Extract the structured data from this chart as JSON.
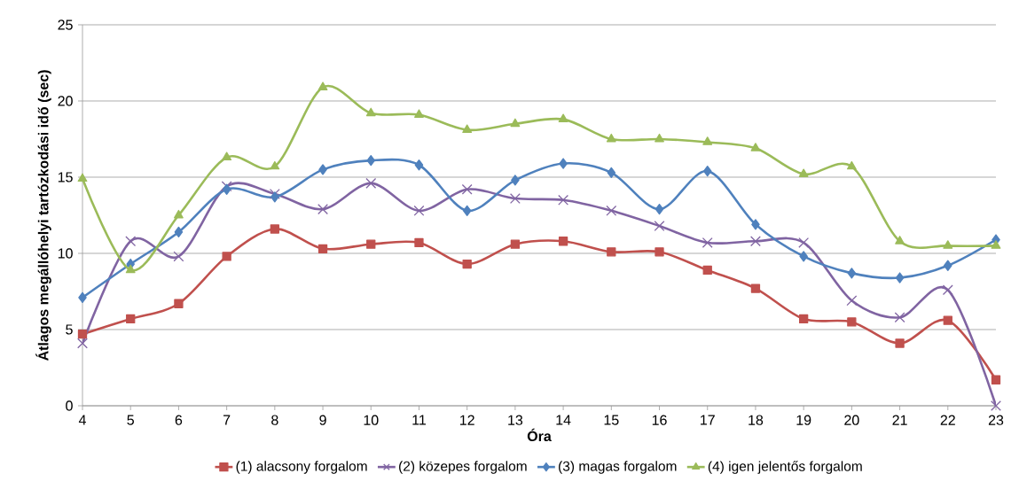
{
  "chart_data": {
    "type": "line",
    "xlabel": "Óra",
    "ylabel": "Átlagos megállóhelyi tartózkodási idő (sec)",
    "x": [
      4,
      5,
      6,
      7,
      8,
      9,
      10,
      11,
      12,
      13,
      14,
      15,
      16,
      17,
      18,
      19,
      20,
      21,
      22,
      23
    ],
    "xlim": [
      4,
      23
    ],
    "xticks": [
      4,
      5,
      6,
      7,
      8,
      9,
      10,
      11,
      12,
      13,
      14,
      15,
      16,
      17,
      18,
      19,
      20,
      21,
      22,
      23
    ],
    "ylim": [
      0,
      25
    ],
    "yticks": [
      0,
      5,
      10,
      15,
      20,
      25
    ],
    "grid": "y",
    "legend": "bottom",
    "series": [
      {
        "name": "(1) alacsony forgalom",
        "color": "#c0504d",
        "marker": "square",
        "values": [
          4.7,
          5.7,
          6.7,
          9.8,
          11.6,
          10.3,
          10.6,
          10.7,
          9.3,
          10.6,
          10.8,
          10.1,
          10.1,
          8.9,
          7.7,
          5.7,
          5.5,
          4.1,
          5.6,
          1.7
        ]
      },
      {
        "name": "(2) közepes forgalom",
        "color": "#8064a2",
        "marker": "cross",
        "values": [
          4.1,
          10.8,
          9.8,
          14.4,
          13.9,
          12.9,
          14.6,
          12.8,
          14.2,
          13.6,
          13.5,
          12.8,
          11.8,
          10.7,
          10.8,
          10.7,
          6.9,
          5.8,
          7.6,
          0
        ]
      },
      {
        "name": "(3) magas forgalom",
        "color": "#4f81bd",
        "marker": "diamond",
        "values": [
          7.1,
          9.3,
          11.4,
          14.2,
          13.7,
          15.5,
          16.1,
          15.8,
          12.8,
          14.8,
          15.9,
          15.3,
          12.9,
          15.4,
          11.9,
          9.8,
          8.7,
          8.4,
          9.2,
          10.9
        ]
      },
      {
        "name": "(4) igen jelentős forgalom",
        "color": "#9bbb59",
        "marker": "triangle",
        "values": [
          14.9,
          8.9,
          12.5,
          16.3,
          15.7,
          20.9,
          19.2,
          19.1,
          18.1,
          18.5,
          18.8,
          17.5,
          17.5,
          17.3,
          16.9,
          15.2,
          15.7,
          10.8,
          10.5,
          10.5
        ]
      }
    ]
  }
}
